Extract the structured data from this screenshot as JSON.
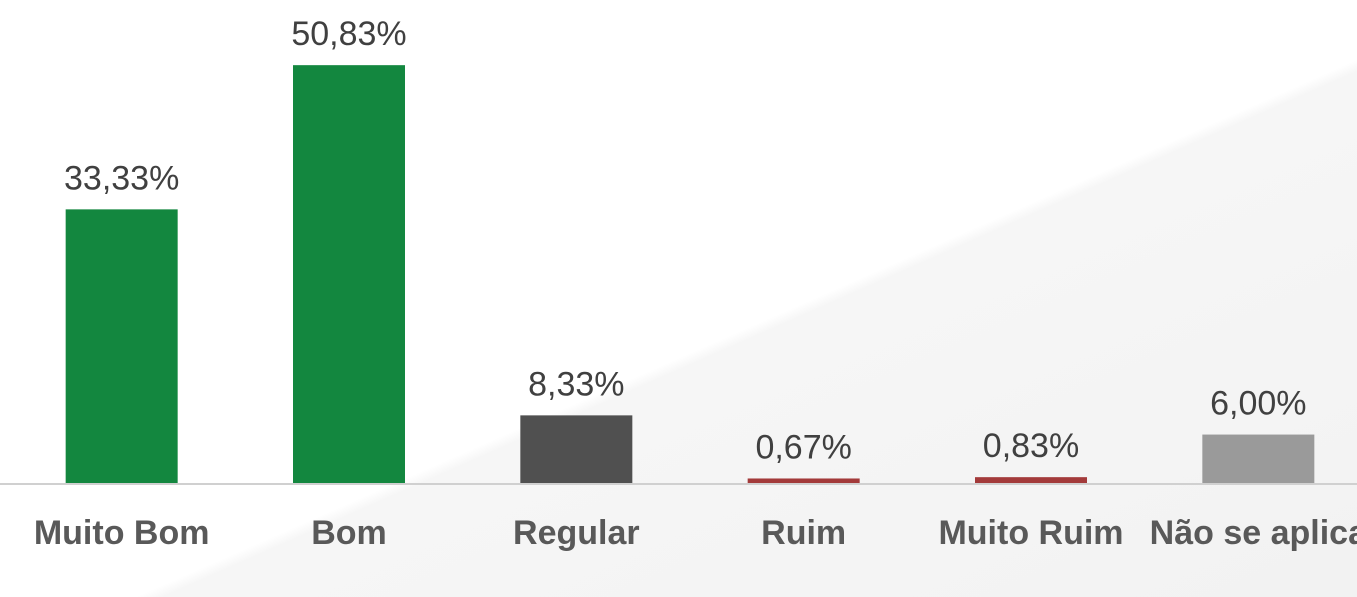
{
  "chart_data": {
    "type": "bar",
    "categories": [
      "Muito Bom",
      "Bom",
      "Regular",
      "Ruim",
      "Muito Ruim",
      "Não se aplica"
    ],
    "values": [
      33.33,
      50.83,
      8.33,
      0.67,
      0.83,
      6.0
    ],
    "value_labels": [
      "33,33%",
      "50,83%",
      "8,33%",
      "0,67%",
      "0,83%",
      "6,00%"
    ],
    "colors": [
      "#13873f",
      "#13873f",
      "#505050",
      "#a33a3a",
      "#a33a3a",
      "#9a9a9a"
    ]
  }
}
